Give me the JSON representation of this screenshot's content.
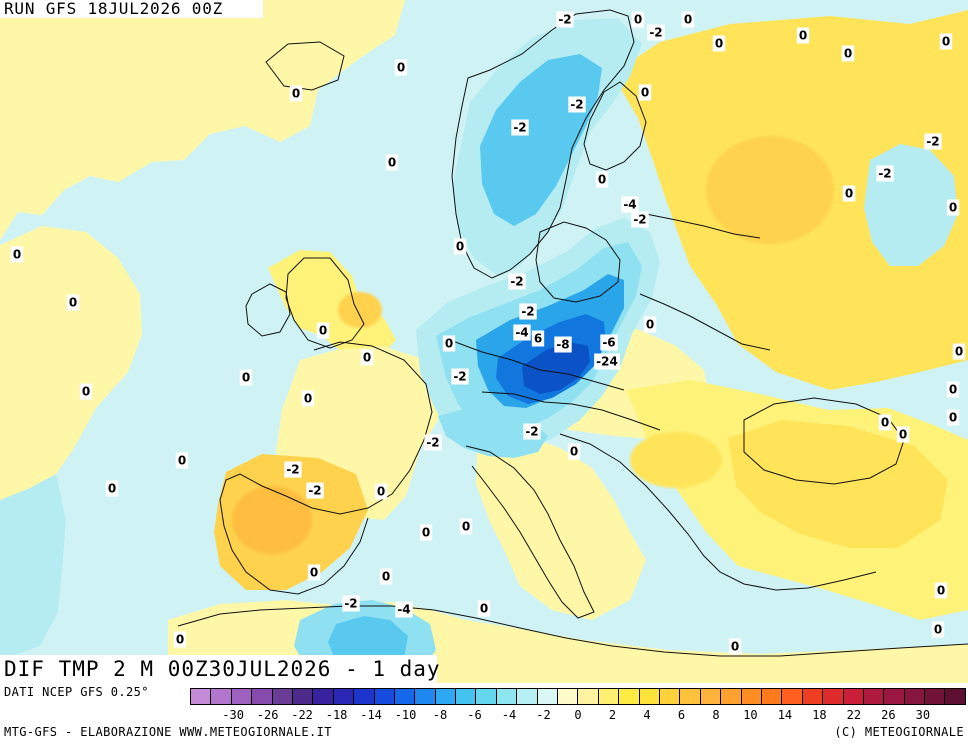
{
  "run_label": "RUN GFS 18JUL2026 00Z",
  "map_title": "DIF TMP 2 M 00Z30JUL2026 - 1 day",
  "source_note": "DATI NCEP GFS 0.25°",
  "credit_left": "MTG-GFS - ELABORAZIONE WWW.METEOGIORNALE.IT",
  "credit_right": "(C) METEOGIORNALE",
  "colors": {
    "ocean_base": "#cff3f5",
    "land_base": "#fff7a8",
    "warm_1": "#fff279",
    "warm_2": "#ffe45a",
    "warm_3": "#ffd24d",
    "warm_4": "#ffbe3f",
    "cold_1": "#b4ecf2",
    "cold_2": "#8fe0f1",
    "cold_3": "#5ac9ef",
    "cold_4": "#2aa5ea",
    "cold_5": "#1276df",
    "cold_6": "#0b52c6",
    "coastline": "#111111"
  },
  "legend": {
    "tick_labels": [
      "-30",
      "-26",
      "-22",
      "-18",
      "-14",
      "-10",
      "-8",
      "-6",
      "-4",
      "-2",
      "0",
      "2",
      "4",
      "6",
      "8",
      "10",
      "14",
      "18",
      "22",
      "26",
      "30"
    ],
    "colors": [
      "#c58bd8",
      "#b276cd",
      "#9f61c0",
      "#874aad",
      "#6b3c95",
      "#4c2b8a",
      "#3822a0",
      "#2b28b6",
      "#1e35cc",
      "#164bdd",
      "#1668ea",
      "#1f88f0",
      "#2ea8f2",
      "#44c2f0",
      "#64d7ef",
      "#8ee6f0",
      "#b7f0f2",
      "#d9f8f4",
      "#fffcc9",
      "#fff3a0",
      "#fff071",
      "#ffec43",
      "#ffe23a",
      "#ffd23b",
      "#ffc23a",
      "#ffb23c",
      "#ffa12f",
      "#ff8d24",
      "#ff7a1d",
      "#ff6020",
      "#ef3d22",
      "#df2b2b",
      "#cb1f39",
      "#b01a3f",
      "#9a1742",
      "#87163f",
      "#731238",
      "#5f1032"
    ]
  },
  "contour_labels": [
    {
      "text": "-2"
    },
    {
      "text": "0"
    },
    {
      "text": "0"
    },
    {
      "text": "-2"
    },
    {
      "text": "0"
    },
    {
      "text": "0"
    },
    {
      "text": "0"
    },
    {
      "text": "0"
    },
    {
      "text": "0"
    },
    {
      "text": "0"
    },
    {
      "text": "-2"
    },
    {
      "text": "0"
    },
    {
      "text": "-2"
    },
    {
      "text": "-2"
    },
    {
      "text": "0"
    },
    {
      "text": "-2"
    },
    {
      "text": "0"
    },
    {
      "text": "-4"
    },
    {
      "text": "-2"
    },
    {
      "text": "0"
    },
    {
      "text": "0"
    },
    {
      "text": "0"
    },
    {
      "text": "-2"
    },
    {
      "text": "-2"
    },
    {
      "text": "-4"
    },
    {
      "text": "6"
    },
    {
      "text": "-8"
    },
    {
      "text": "-6"
    },
    {
      "text": "0"
    },
    {
      "text": "0"
    },
    {
      "text": "0"
    },
    {
      "text": "-2"
    },
    {
      "text": "-24"
    },
    {
      "text": "0"
    },
    {
      "text": "0"
    },
    {
      "text": "0"
    },
    {
      "text": "0"
    },
    {
      "text": "0"
    },
    {
      "text": "0"
    },
    {
      "text": "-2"
    },
    {
      "text": "-2"
    },
    {
      "text": "0"
    },
    {
      "text": "0"
    },
    {
      "text": "0"
    },
    {
      "text": "-2"
    },
    {
      "text": "0"
    },
    {
      "text": "0"
    },
    {
      "text": "0"
    },
    {
      "text": "0"
    },
    {
      "text": "0"
    },
    {
      "text": "-2"
    },
    {
      "text": "-4"
    },
    {
      "text": "0"
    },
    {
      "text": "0"
    },
    {
      "text": "0"
    },
    {
      "text": "0"
    },
    {
      "text": "0"
    },
    {
      "text": "-2"
    },
    {
      "text": "0"
    },
    {
      "text": "0"
    },
    {
      "text": "0"
    },
    {
      "text": "0"
    },
    {
      "text": "0"
    }
  ]
}
